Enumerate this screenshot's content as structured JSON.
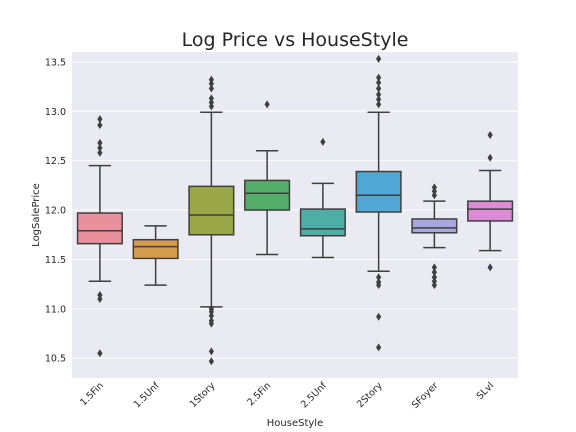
{
  "chart_data": {
    "type": "box",
    "title": "Log Price vs HouseStyle",
    "xlabel": "HouseStyle",
    "ylabel": "LogSalePrice",
    "ylim": [
      10.3,
      13.6
    ],
    "yticks": [
      10.5,
      11.0,
      11.5,
      12.0,
      12.5,
      13.0,
      13.5
    ],
    "ytick_labels": [
      "10.5",
      "11.0",
      "11.5",
      "12.0",
      "12.5",
      "13.0",
      "13.5"
    ],
    "grid": true,
    "background": "#EAEAF2",
    "categories": [
      "1.5Fin",
      "1.5Unf",
      "1Story",
      "2.5Fin",
      "2.5Unf",
      "2Story",
      "SFoyer",
      "SLvl"
    ],
    "boxes": [
      {
        "category": "1.5Fin",
        "whisker_low": 11.28,
        "q1": 11.66,
        "median": 11.79,
        "q3": 11.97,
        "whisker_high": 12.45,
        "outliers": [
          12.92,
          12.86,
          12.68,
          12.63,
          12.58,
          11.14,
          11.1,
          10.55
        ],
        "color": "#E8919C"
      },
      {
        "category": "1.5Unf",
        "whisker_low": 11.24,
        "q1": 11.51,
        "median": 11.63,
        "q3": 11.7,
        "whisker_high": 11.84,
        "outliers": [],
        "color": "#D49D4E"
      },
      {
        "category": "1Story",
        "whisker_low": 11.02,
        "q1": 11.75,
        "median": 11.95,
        "q3": 12.24,
        "whisker_high": 12.99,
        "outliers": [
          13.32,
          13.28,
          13.23,
          13.13,
          13.09,
          13.05,
          11.0,
          10.97,
          10.93,
          10.88,
          10.85,
          10.57,
          10.47
        ],
        "color": "#9BA84A"
      },
      {
        "category": "2.5Fin",
        "whisker_low": 11.55,
        "q1": 12.0,
        "median": 12.17,
        "q3": 12.3,
        "whisker_high": 12.6,
        "outliers": [
          13.07
        ],
        "color": "#54AE6A"
      },
      {
        "category": "2.5Unf",
        "whisker_low": 11.52,
        "q1": 11.74,
        "median": 11.81,
        "q3": 12.01,
        "whisker_high": 12.27,
        "outliers": [
          12.69
        ],
        "color": "#4CAEA4"
      },
      {
        "category": "2Story",
        "whisker_low": 11.38,
        "q1": 11.98,
        "median": 12.15,
        "q3": 12.39,
        "whisker_high": 12.99,
        "outliers": [
          13.53,
          13.34,
          13.29,
          13.23,
          13.17,
          13.12,
          13.07,
          11.32,
          11.27,
          11.24,
          10.92,
          10.61
        ],
        "color": "#4FA7D3"
      },
      {
        "category": "SFoyer",
        "whisker_low": 11.62,
        "q1": 11.77,
        "median": 11.82,
        "q3": 11.91,
        "whisker_high": 12.09,
        "outliers": [
          12.23,
          12.19,
          12.15,
          11.42,
          11.37,
          11.32,
          11.28,
          11.24
        ],
        "color": "#A8A6DF"
      },
      {
        "category": "SLvl",
        "whisker_low": 11.59,
        "q1": 11.89,
        "median": 12.01,
        "q3": 12.09,
        "whisker_high": 12.4,
        "outliers": [
          12.76,
          12.53,
          11.42
        ],
        "color": "#DC8BD6"
      }
    ]
  }
}
